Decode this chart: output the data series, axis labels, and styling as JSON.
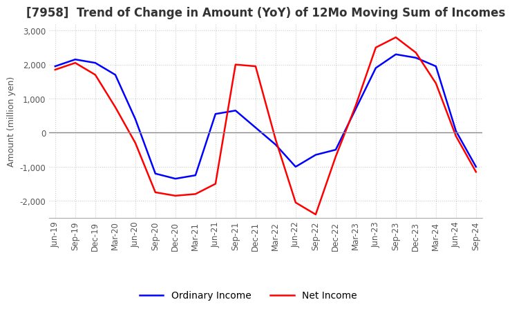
{
  "title": "[7958]  Trend of Change in Amount (YoY) of 12Mo Moving Sum of Incomes",
  "ylabel": "Amount (million yen)",
  "ylim": [
    -2500,
    3200
  ],
  "yticks": [
    -2000,
    -1000,
    0,
    1000,
    2000,
    3000
  ],
  "x_labels": [
    "Jun-19",
    "Sep-19",
    "Dec-19",
    "Mar-20",
    "Jun-20",
    "Sep-20",
    "Dec-20",
    "Mar-21",
    "Jun-21",
    "Sep-21",
    "Dec-21",
    "Mar-22",
    "Jun-22",
    "Sep-22",
    "Dec-22",
    "Mar-23",
    "Jun-23",
    "Sep-23",
    "Dec-23",
    "Mar-24",
    "Jun-24",
    "Sep-24"
  ],
  "ordinary_income": [
    1950,
    2150,
    2050,
    1700,
    400,
    -1200,
    -1350,
    -1250,
    550,
    650,
    150,
    -350,
    -1000,
    -650,
    -500,
    700,
    1900,
    2300,
    2200,
    1950,
    50,
    -1000
  ],
  "net_income": [
    1850,
    2050,
    1700,
    750,
    -300,
    -1750,
    -1850,
    -1800,
    -1500,
    2000,
    1950,
    -200,
    -2050,
    -2400,
    -700,
    800,
    2500,
    2800,
    2350,
    1450,
    -100,
    -1150
  ],
  "ordinary_color": "#0000ff",
  "net_color": "#ff0000",
  "grid_color": "#cccccc",
  "background_color": "#ffffff",
  "title_fontsize": 12,
  "axis_fontsize": 9,
  "tick_fontsize": 8.5,
  "legend_fontsize": 10
}
